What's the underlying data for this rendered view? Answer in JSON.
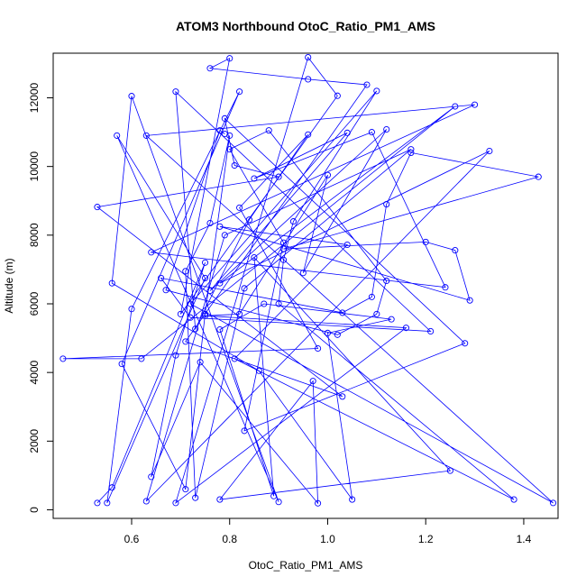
{
  "chart_data": {
    "type": "line",
    "title": "ATOM3 Northbound OtoC_Ratio_PM1_AMS",
    "xlabel": "OtoC_Ratio_PM1_AMS",
    "ylabel": "Altitude (m)",
    "xlim": [
      0.44,
      1.47
    ],
    "ylim": [
      -250,
      13300
    ],
    "xticks": [
      0.6,
      0.8,
      1.0,
      1.2,
      1.4
    ],
    "xtick_labels": [
      "0.6",
      "0.8",
      "1.0",
      "1.2",
      "1.4"
    ],
    "yticks": [
      0,
      2000,
      4000,
      6000,
      8000,
      10000,
      12000
    ],
    "ytick_labels": [
      "0",
      "2000",
      "4000",
      "6000",
      "8000",
      "10000",
      "12000"
    ],
    "grid": false,
    "line_color": "#0000ff",
    "marker": "open-circle",
    "series": [
      {
        "x": [
          0.53,
          0.56,
          0.75,
          0.69,
          0.64,
          0.74,
          0.98,
          0.97,
          0.78,
          1.25,
          0.85,
          0.89,
          0.78,
          0.87,
          1.13,
          1.0,
          1.05,
          0.86,
          0.56,
          0.6,
          0.9,
          0.57,
          0.75,
          0.55,
          0.6,
          0.82,
          0.58,
          0.71,
          0.75,
          0.8,
          0.76,
          0.71,
          0.73,
          0.83,
          1.17,
          0.79,
          0.63,
          1.33,
          0.78,
          1.26,
          0.62,
          0.46,
          0.98,
          0.82,
          0.96,
          0.84,
          0.73,
          0.69,
          1.21,
          0.72,
          0.66,
          1.03,
          1.09,
          1.12,
          1.17,
          1.43,
          0.91,
          1.2,
          1.26,
          1.29,
          0.78,
          1.04,
          0.81,
          1.38,
          0.9,
          0.91,
          0.93,
          1.1,
          0.72,
          1.46,
          0.63,
          1.3,
          0.64,
          1.24,
          1.09,
          0.85,
          1.04,
          0.76,
          1.12,
          0.95,
          1.0,
          0.82,
          0.75,
          1.16,
          0.69,
          0.96,
          1.02,
          0.7,
          0.8,
          0.76,
          0.96,
          1.08,
          0.71,
          1.03,
          0.53,
          0.9,
          0.81,
          0.79,
          1.28,
          0.83,
          0.91,
          0.8,
          0.88,
          1.12,
          1.1,
          1.02,
          0.67,
          0.78,
          0.79
        ],
        "y": [
          200,
          650,
          7200,
          4500,
          960,
          4300,
          190,
          3750,
          300,
          1140,
          7350,
          400,
          5250,
          6000,
          5550,
          5150,
          300,
          4050,
          6600,
          12050,
          230,
          10900,
          6750,
          200,
          5850,
          12180,
          4250,
          600,
          5700,
          10900,
          8350,
          6950,
          350,
          6450,
          10500,
          8000,
          250,
          10450,
          6600,
          11750,
          4400,
          4400,
          4700,
          8800,
          10930,
          8450,
          5270,
          12180,
          5200,
          5600,
          6750,
          5740,
          6200,
          8900,
          10400,
          9700,
          7600,
          7800,
          7560,
          6100,
          8250,
          7720,
          4400,
          300,
          6000,
          7280,
          8400,
          12200,
          6000,
          200,
          10900,
          11800,
          7500,
          6480,
          11000,
          9650,
          10980,
          6380,
          11080,
          6900,
          9750,
          5700,
          5650,
          5300,
          200,
          13180,
          12060,
          5700,
          13150,
          12860,
          12540,
          12380,
          4900,
          3300,
          8820,
          9700,
          10030,
          11400,
          4850,
          2300,
          7780,
          10500,
          11050,
          6670,
          5700,
          5100,
          6400,
          11050,
          10950
        ]
      }
    ]
  }
}
